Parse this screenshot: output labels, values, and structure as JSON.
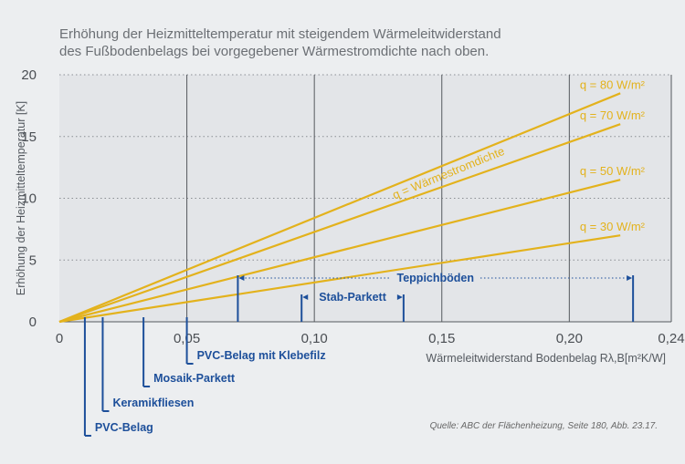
{
  "title": {
    "line1": "Erhöhung der Heizmitteltemperatur mit steigendem Wärmeleitwiderstand",
    "line2": "des Fußbodenbelags bei vorgegebener Wärmestromdichte nach oben."
  },
  "source": "Quelle: ABC der Flächenheizung, Seite 180, Abb. 23.17.",
  "chart_data": {
    "type": "line",
    "title": "Erhöhung der Heizmitteltemperatur mit steigendem Wärmeleitwiderstand des Fußbodenbelags bei vorgegebener Wärmestromdichte nach oben.",
    "xlabel": "Wärmeleitwiderstand Bodenbelag Rλ,B[m²K/W]",
    "ylabel": "Erhöhung der Heizmitteltemperatur [K]",
    "xlim": [
      0,
      0.24
    ],
    "ylim": [
      0,
      20
    ],
    "x_ticks": [
      0,
      0.05,
      0.1,
      0.15,
      0.2,
      0.24
    ],
    "x_tick_labels": [
      "0",
      "0,05",
      "0,10",
      "0,15",
      "0,20",
      "0,24"
    ],
    "y_ticks": [
      0,
      5,
      10,
      15,
      20
    ],
    "y_tick_labels": [
      "0",
      "5",
      "10",
      "15",
      "20"
    ],
    "curve_annotation": "q = Wärmestromdichte",
    "series": [
      {
        "name": "q = 80 W/m²",
        "x": [
          0,
          0.22
        ],
        "y": [
          0,
          18.5
        ]
      },
      {
        "name": "q = 70 W/m²",
        "x": [
          0,
          0.22
        ],
        "y": [
          0,
          16.0
        ]
      },
      {
        "name": "q = 50 W/m²",
        "x": [
          0,
          0.22
        ],
        "y": [
          0,
          11.5
        ]
      },
      {
        "name": "q = 30 W/m²",
        "x": [
          0,
          0.22
        ],
        "y": [
          0,
          7.0
        ]
      }
    ],
    "ranges": [
      {
        "label": "Teppichböden",
        "x_start": 0.07,
        "x_end": 0.225
      },
      {
        "label": "Stab-Parkett",
        "x_start": 0.095,
        "x_end": 0.135
      }
    ],
    "floor_markers": [
      {
        "label": "PVC-Belag mit Klebefilz",
        "x": 0.05
      },
      {
        "label": "Mosaik-Parkett",
        "x": 0.033
      },
      {
        "label": "Keramikfliesen",
        "x": 0.017
      },
      {
        "label": "PVC-Belag",
        "x": 0.01
      }
    ]
  }
}
